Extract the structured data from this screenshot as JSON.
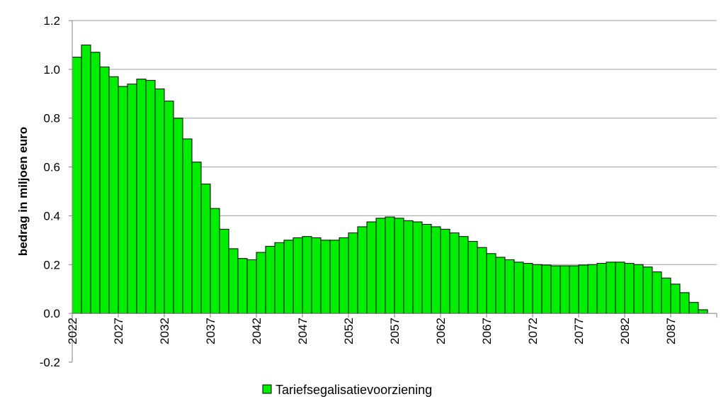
{
  "chart_data": {
    "type": "bar",
    "title": "",
    "xlabel": "",
    "ylabel": "bedrag in miljoen euro",
    "ylim": [
      -0.2,
      1.2
    ],
    "yticks": [
      "-0.2",
      "0.0",
      "0.2",
      "0.4",
      "0.6",
      "0.8",
      "1.0",
      "1.2"
    ],
    "xtick_labels": [
      "2022",
      "2027",
      "2032",
      "2037",
      "2042",
      "2047",
      "2052",
      "2057",
      "2062",
      "2067",
      "2072",
      "2077",
      "2082",
      "2087"
    ],
    "grid": "horizontal",
    "legend_position": "bottom",
    "colors": {
      "bar": "#00ee00",
      "edge": "#000000",
      "grid": "#a0a0a0"
    },
    "categories_start": 2022,
    "categories_end": 2091,
    "series": [
      {
        "name": "Tariefsegalisatievoorziening",
        "values": [
          1.05,
          1.1,
          1.07,
          1.01,
          0.97,
          0.93,
          0.94,
          0.96,
          0.955,
          0.92,
          0.87,
          0.8,
          0.715,
          0.62,
          0.53,
          0.43,
          0.345,
          0.265,
          0.225,
          0.22,
          0.25,
          0.275,
          0.29,
          0.3,
          0.31,
          0.315,
          0.31,
          0.3,
          0.3,
          0.31,
          0.33,
          0.355,
          0.375,
          0.39,
          0.395,
          0.39,
          0.38,
          0.375,
          0.365,
          0.355,
          0.345,
          0.33,
          0.315,
          0.295,
          0.27,
          0.245,
          0.23,
          0.22,
          0.21,
          0.205,
          0.2,
          0.198,
          0.195,
          0.195,
          0.195,
          0.198,
          0.2,
          0.205,
          0.21,
          0.21,
          0.205,
          0.2,
          0.19,
          0.17,
          0.145,
          0.12,
          0.085,
          0.045,
          0.015,
          null
        ]
      }
    ]
  }
}
